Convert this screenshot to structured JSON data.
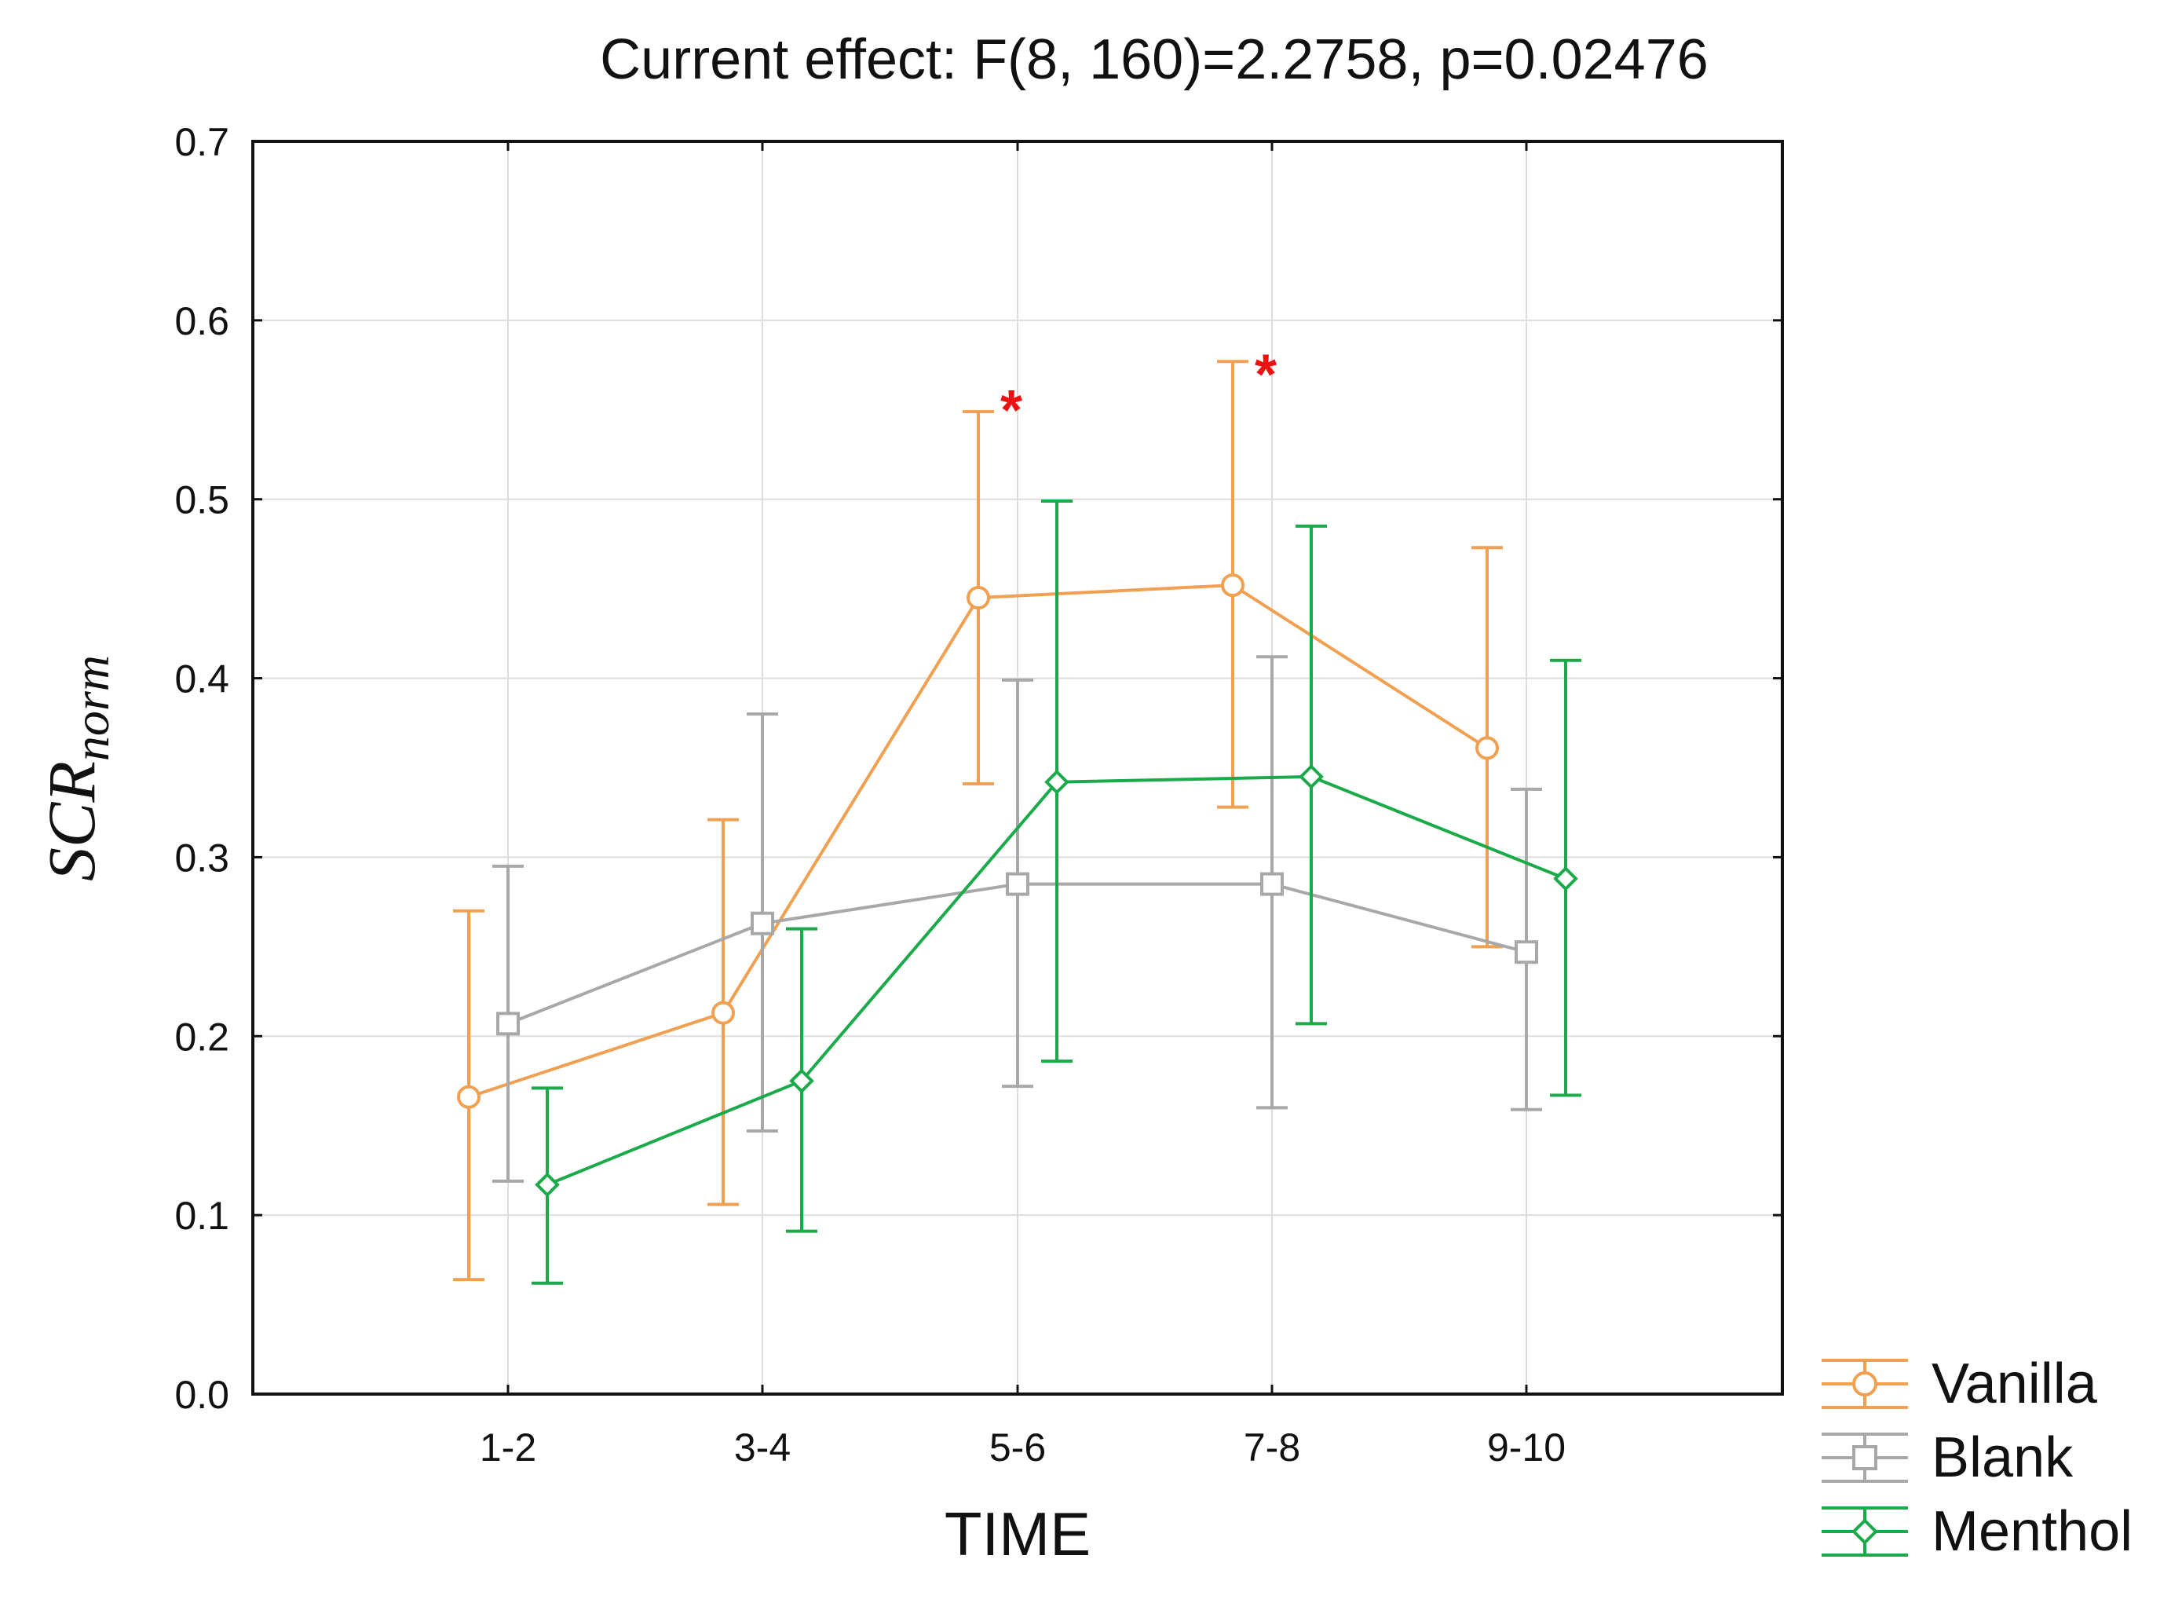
{
  "chart_data": {
    "type": "line",
    "title": "Current effect: F(8, 160)=2.2758, p=0.02476",
    "xlabel": "TIME",
    "ylabel": {
      "main": "SCR",
      "subscript": "norm"
    },
    "ylim": [
      0.0,
      0.7
    ],
    "yticks": [
      "0.0",
      "0.1",
      "0.2",
      "0.3",
      "0.4",
      "0.5",
      "0.6",
      "0.7"
    ],
    "categories": [
      "1-2",
      "3-4",
      "5-6",
      "7-8",
      "9-10"
    ],
    "grid": true,
    "legend_position": "bottom-right, outside plot",
    "series": [
      {
        "name": "Vanilla",
        "color": "#F0A050",
        "marker": "circle",
        "values": [
          0.166,
          0.213,
          0.445,
          0.452,
          0.361
        ],
        "err_low": [
          0.064,
          0.106,
          0.341,
          0.328,
          0.25
        ],
        "err_high": [
          0.27,
          0.321,
          0.549,
          0.577,
          0.473
        ]
      },
      {
        "name": "Blank",
        "color": "#A8A8A8",
        "marker": "square",
        "values": [
          0.207,
          0.263,
          0.285,
          0.285,
          0.247
        ],
        "err_low": [
          0.119,
          0.147,
          0.172,
          0.16,
          0.159
        ],
        "err_high": [
          0.295,
          0.38,
          0.399,
          0.412,
          0.338
        ]
      },
      {
        "name": "Menthol",
        "color": "#1AAA4A",
        "marker": "diamond",
        "values": [
          0.117,
          0.175,
          0.342,
          0.345,
          0.288
        ],
        "err_low": [
          0.062,
          0.091,
          0.186,
          0.207,
          0.167
        ],
        "err_high": [
          0.171,
          0.26,
          0.499,
          0.485,
          0.41
        ]
      }
    ],
    "annotations": [
      {
        "text": "*",
        "category": "5-6",
        "y": 0.56,
        "color": "#EE1111"
      },
      {
        "text": "*",
        "category": "7-8",
        "y": 0.58,
        "color": "#EE1111"
      }
    ]
  }
}
